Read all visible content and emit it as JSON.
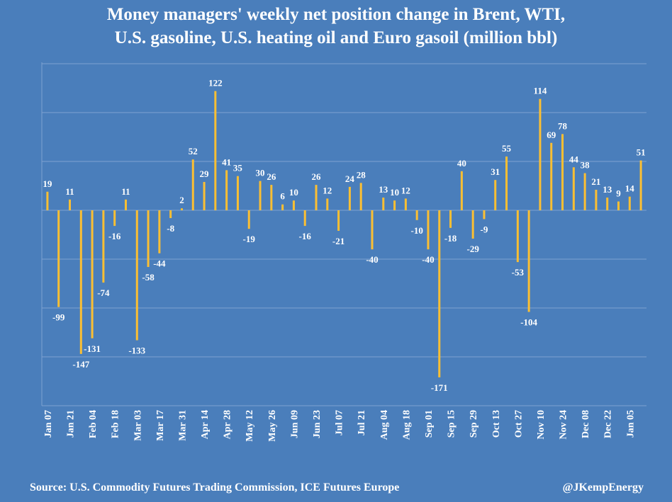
{
  "chart_data": {
    "type": "bar",
    "title_lines": [
      "Money managers' weekly net position change in Brent, WTI,",
      "U.S. gasoline, U.S. heating oil and Euro gasoil (million bbl)"
    ],
    "ylim": [
      -200,
      150
    ],
    "grid": true,
    "tick_labels": [
      "Jan 07",
      "Jan 21",
      "Feb 04",
      "Feb 18",
      "Mar 03",
      "Mar 17",
      "Mar 31",
      "Apr 14",
      "Apr 28",
      "May 12",
      "May 26",
      "Jun 09",
      "Jun 23",
      "Jul 07",
      "Jul 21",
      "Aug 04",
      "Aug 18",
      "Sep 01",
      "Sep 15",
      "Sep 29",
      "Oct 13",
      "Oct 27",
      "Nov 10",
      "Nov 24",
      "Dec 08",
      "Dec 22",
      "Jan 05"
    ],
    "values": [
      19,
      -99,
      11,
      -147,
      -131,
      -74,
      -16,
      11,
      -133,
      -58,
      -44,
      -8,
      2,
      52,
      29,
      122,
      41,
      35,
      -19,
      30,
      26,
      6,
      10,
      -16,
      26,
      12,
      -21,
      24,
      28,
      -40,
      13,
      10,
      12,
      -10,
      -40,
      -171,
      -18,
      40,
      -29,
      -9,
      31,
      55,
      -53,
      -104,
      114,
      69,
      78,
      44,
      38,
      21,
      13,
      9,
      14,
      51
    ],
    "bar_color": "#fbbf33"
  },
  "footer": {
    "source": "Source: U.S. Commodity Futures Trading Commission, ICE Futures Europe",
    "handle": "@JKempEnergy"
  }
}
